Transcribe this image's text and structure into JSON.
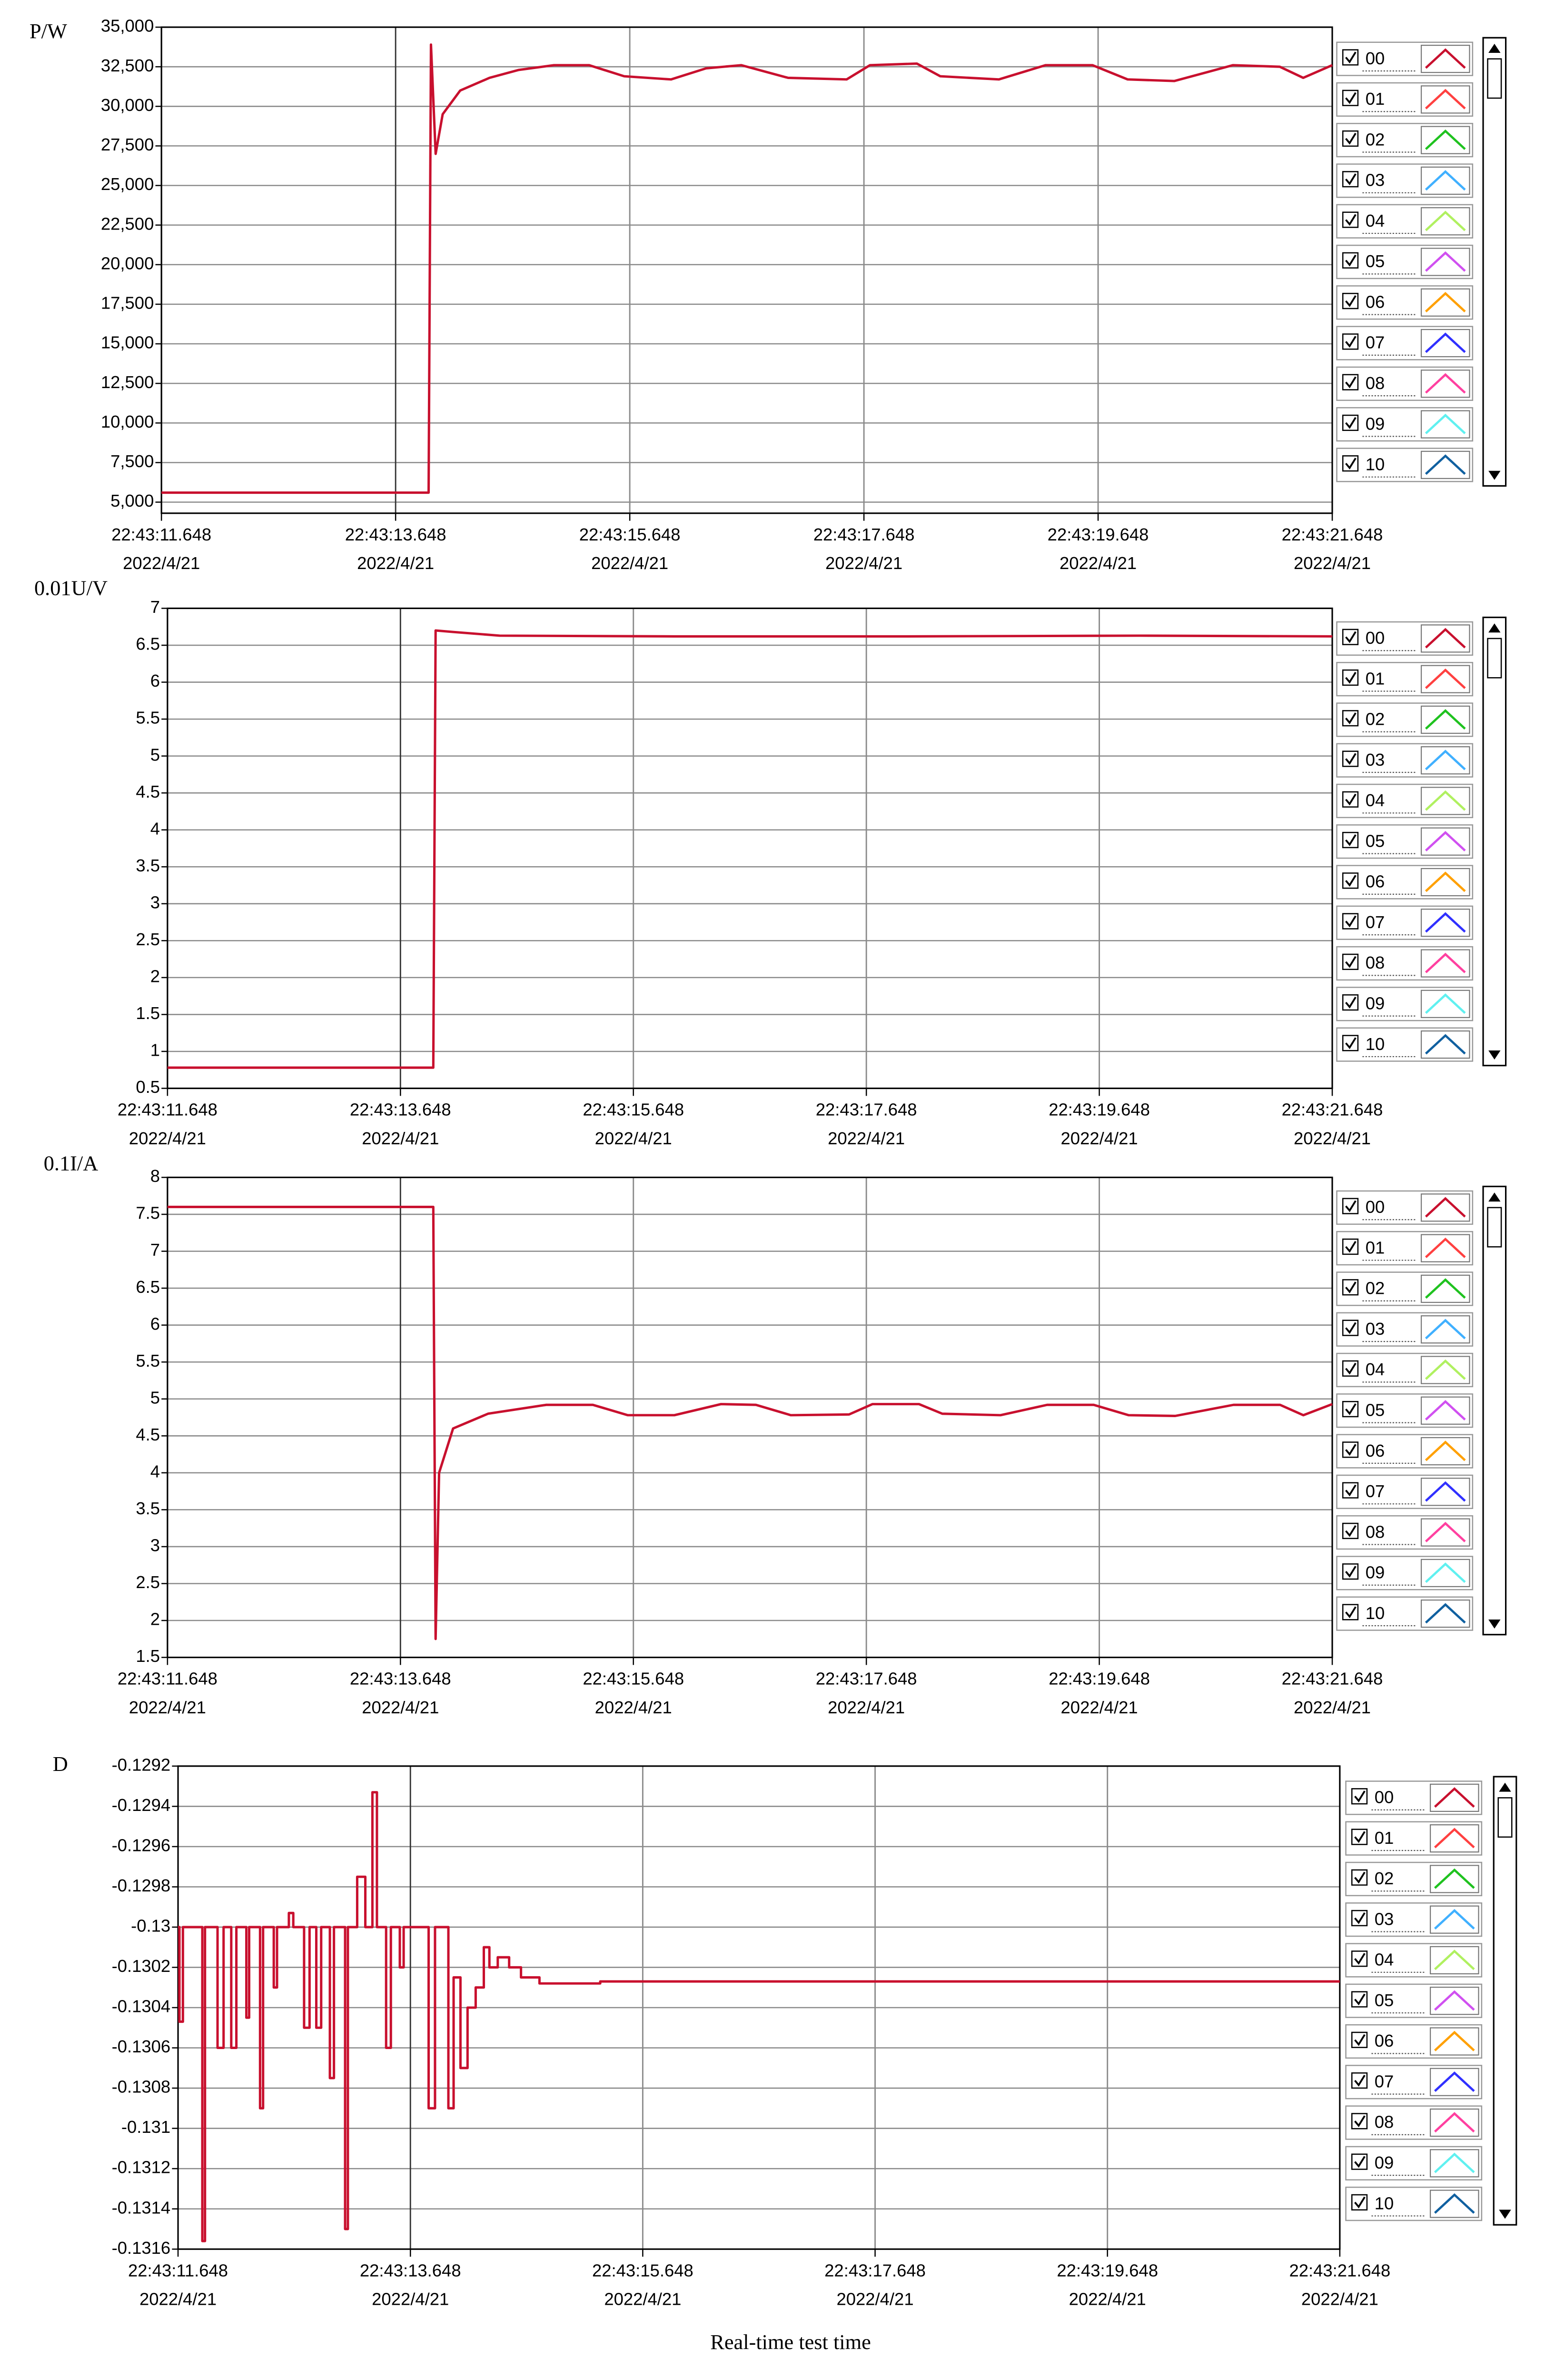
{
  "chart_data": [
    {
      "type": "line",
      "ylabel": "P/W",
      "x_date": "2022/4/21",
      "xlim": [
        "22:43:11.648",
        "22:43:21.648"
      ],
      "xticks": [
        "22:43:11.648",
        "22:43:13.648",
        "22:43:15.648",
        "22:43:17.648",
        "22:43:19.648",
        "22:43:21.648"
      ],
      "ylim": [
        4300,
        35000
      ],
      "yticks": [
        {
          "value": 5000,
          "label": "5,000"
        },
        {
          "value": 7500,
          "label": "7,500"
        },
        {
          "value": 10000,
          "label": "10,000"
        },
        {
          "value": 12500,
          "label": "12,500"
        },
        {
          "value": 15000,
          "label": "15,000"
        },
        {
          "value": 17500,
          "label": "17,500"
        },
        {
          "value": 20000,
          "label": "20,000"
        },
        {
          "value": 22500,
          "label": "22,500"
        },
        {
          "value": 25000,
          "label": "25,000"
        },
        {
          "value": 27500,
          "label": "27,500"
        },
        {
          "value": 30000,
          "label": "30,000"
        },
        {
          "value": 32500,
          "label": "32,500"
        },
        {
          "value": 35000,
          "label": "35,000"
        }
      ],
      "grid": true,
      "line_style": "linear",
      "x": [
        "22:43:11.648",
        "22:43:13.930",
        "22:43:13.950",
        "22:43:13.990",
        "22:43:14.050",
        "22:43:14.200",
        "22:43:14.450",
        "22:43:14.700",
        "22:43:15.000",
        "22:43:15.300",
        "22:43:15.600",
        "22:43:16.000",
        "22:43:16.300",
        "22:43:16.600",
        "22:43:17.000",
        "22:43:17.500",
        "22:43:17.700",
        "22:43:18.100",
        "22:43:18.300",
        "22:43:18.800",
        "22:43:19.200",
        "22:43:19.600",
        "22:43:19.900",
        "22:43:20.300",
        "22:43:20.800",
        "22:43:21.200",
        "22:43:21.400",
        "22:43:21.648"
      ],
      "series": [
        {
          "name": "00",
          "color": "#c8102e",
          "values": [
            5600,
            5600,
            33900,
            27000,
            29500,
            31000,
            31800,
            32300,
            32600,
            32600,
            31900,
            31700,
            32400,
            32600,
            31800,
            31700,
            32600,
            32700,
            31900,
            31700,
            32600,
            32600,
            31700,
            31600,
            32600,
            32500,
            31800,
            32600
          ]
        }
      ],
      "legend_entries": [
        {
          "name": "01",
          "color": "#ff4040"
        },
        {
          "name": "02",
          "color": "#1fc21f"
        },
        {
          "name": "03",
          "color": "#40b0ff"
        },
        {
          "name": "04",
          "color": "#b0f060"
        },
        {
          "name": "05",
          "color": "#d050f0"
        },
        {
          "name": "06",
          "color": "#ffa000"
        },
        {
          "name": "07",
          "color": "#3030ff"
        },
        {
          "name": "08",
          "color": "#ff40a0"
        },
        {
          "name": "09",
          "color": "#60f0f0"
        },
        {
          "name": "10",
          "color": "#1060a0"
        }
      ]
    },
    {
      "type": "line",
      "ylabel": "0.01U/V",
      "x_date": "2022/4/21",
      "xlim": [
        "22:43:11.648",
        "22:43:21.648"
      ],
      "xticks": [
        "22:43:11.648",
        "22:43:13.648",
        "22:43:15.648",
        "22:43:17.648",
        "22:43:19.648",
        "22:43:21.648"
      ],
      "ylim": [
        0.5,
        7
      ],
      "yticks": [
        0.5,
        1,
        1.5,
        2,
        2.5,
        3,
        3.5,
        4,
        4.5,
        5,
        5.5,
        6,
        6.5,
        7
      ],
      "grid": true,
      "line_style": "linear",
      "x": [
        "22:43:11.648",
        "22:43:13.930",
        "22:43:13.950",
        "22:43:14.100",
        "22:43:14.500",
        "22:43:16.000",
        "22:43:18.000",
        "22:43:20.000",
        "22:43:21.648"
      ],
      "series": [
        {
          "name": "00",
          "color": "#c8102e",
          "values": [
            0.78,
            0.78,
            6.7,
            6.68,
            6.63,
            6.62,
            6.62,
            6.63,
            6.62
          ]
        }
      ],
      "legend_entries": [
        {
          "name": "01",
          "color": "#ff4040"
        },
        {
          "name": "02",
          "color": "#1fc21f"
        },
        {
          "name": "03",
          "color": "#40b0ff"
        },
        {
          "name": "04",
          "color": "#b0f060"
        },
        {
          "name": "05",
          "color": "#d050f0"
        },
        {
          "name": "06",
          "color": "#ffa000"
        },
        {
          "name": "07",
          "color": "#3030ff"
        },
        {
          "name": "08",
          "color": "#ff40a0"
        },
        {
          "name": "09",
          "color": "#60f0f0"
        },
        {
          "name": "10",
          "color": "#1060a0"
        }
      ]
    },
    {
      "type": "line",
      "ylabel": "0.1I/A",
      "x_date": "2022/4/21",
      "xlim": [
        "22:43:11.648",
        "22:43:21.648"
      ],
      "xticks": [
        "22:43:11.648",
        "22:43:13.648",
        "22:43:15.648",
        "22:43:17.648",
        "22:43:19.648",
        "22:43:21.648"
      ],
      "ylim": [
        1.5,
        8
      ],
      "yticks": [
        1.5,
        2,
        2.5,
        3,
        3.5,
        4,
        4.5,
        5,
        5.5,
        6,
        6.5,
        7,
        7.5,
        8
      ],
      "grid": true,
      "line_style": "linear",
      "x": [
        "22:43:11.648",
        "22:43:13.930",
        "22:43:13.950",
        "22:43:13.980",
        "22:43:14.100",
        "22:43:14.400",
        "22:43:14.900",
        "22:43:15.300",
        "22:43:15.600",
        "22:43:16.000",
        "22:43:16.400",
        "22:43:16.700",
        "22:43:17.000",
        "22:43:17.500",
        "22:43:17.700",
        "22:43:18.100",
        "22:43:18.300",
        "22:43:18.800",
        "22:43:19.200",
        "22:43:19.600",
        "22:43:19.900",
        "22:43:20.300",
        "22:43:20.800",
        "22:43:21.200",
        "22:43:21.400",
        "22:43:21.648"
      ],
      "series": [
        {
          "name": "00",
          "color": "#c8102e",
          "values": [
            7.6,
            7.6,
            1.75,
            4.0,
            4.6,
            4.8,
            4.92,
            4.92,
            4.78,
            4.78,
            4.93,
            4.92,
            4.78,
            4.79,
            4.93,
            4.93,
            4.8,
            4.78,
            4.92,
            4.92,
            4.78,
            4.77,
            4.92,
            4.92,
            4.78,
            4.93
          ]
        }
      ],
      "legend_entries": [
        {
          "name": "01",
          "color": "#ff4040"
        },
        {
          "name": "02",
          "color": "#1fc21f"
        },
        {
          "name": "03",
          "color": "#40b0ff"
        },
        {
          "name": "04",
          "color": "#b0f060"
        },
        {
          "name": "05",
          "color": "#d050f0"
        },
        {
          "name": "06",
          "color": "#ffa000"
        },
        {
          "name": "07",
          "color": "#3030ff"
        },
        {
          "name": "08",
          "color": "#ff40a0"
        },
        {
          "name": "09",
          "color": "#60f0f0"
        },
        {
          "name": "10",
          "color": "#1060a0"
        }
      ]
    },
    {
      "type": "line",
      "ylabel": "D",
      "x_date": "2022/4/21",
      "xlabel": "Real-time test time",
      "xlim": [
        "22:43:11.648",
        "22:43:21.648"
      ],
      "xticks": [
        "22:43:11.648",
        "22:43:13.648",
        "22:43:15.648",
        "22:43:17.648",
        "22:43:19.648",
        "22:43:21.648"
      ],
      "ylim": [
        -0.1316,
        -0.1292
      ],
      "yticks": [
        -0.1292,
        -0.1294,
        -0.1296,
        -0.1298,
        -0.13,
        -0.1302,
        -0.1304,
        -0.1306,
        -0.1308,
        -0.131,
        -0.1312,
        -0.1314,
        -0.1316
      ],
      "grid": true,
      "line_style": "step",
      "x": [
        "22:43:11.648",
        "22:43:11.660",
        "22:43:11.690",
        "22:43:11.857",
        "22:43:11.880",
        "22:43:11.988",
        "22:43:12.040",
        "22:43:12.106",
        "22:43:12.150",
        "22:43:12.236",
        "22:43:12.260",
        "22:43:12.354",
        "22:43:12.380",
        "22:43:12.472",
        "22:43:12.500",
        "22:43:12.602",
        "22:43:12.640",
        "22:43:12.733",
        "22:43:12.780",
        "22:43:12.838",
        "22:43:12.880",
        "22:43:12.955",
        "22:43:12.990",
        "22:43:13.086",
        "22:43:13.110",
        "22:43:13.190",
        "22:43:13.260",
        "22:43:13.321",
        "22:43:13.360",
        "22:43:13.439",
        "22:43:13.480",
        "22:43:13.557",
        "22:43:13.590",
        "22:43:13.805",
        "22:43:13.860",
        "22:43:13.975",
        "22:43:14.020",
        "22:43:14.079",
        "22:43:14.140",
        "22:43:14.210",
        "22:43:14.280",
        "22:43:14.328",
        "22:43:14.400",
        "22:43:14.498",
        "22:43:14.600",
        "22:43:14.759",
        "22:43:15.282",
        "22:43:21.648"
      ],
      "series": [
        {
          "name": "00",
          "color": "#c8102e",
          "values": [
            -0.13,
            -0.13047,
            -0.13,
            -0.13156,
            -0.13,
            -0.1306,
            -0.13,
            -0.1306,
            -0.13,
            -0.13045,
            -0.13,
            -0.1309,
            -0.13,
            -0.1303,
            -0.13,
            -0.12993,
            -0.13,
            -0.1305,
            -0.13,
            -0.1305,
            -0.13,
            -0.13075,
            -0.13,
            -0.1315,
            -0.13,
            -0.12975,
            -0.13,
            -0.12933,
            -0.13,
            -0.1306,
            -0.13,
            -0.1302,
            -0.13,
            -0.1309,
            -0.13,
            -0.1309,
            -0.13025,
            -0.1307,
            -0.1304,
            -0.1303,
            -0.1301,
            -0.1302,
            -0.13015,
            -0.1302,
            -0.13025,
            -0.13028,
            -0.13027,
            -0.13027
          ]
        }
      ],
      "legend_entries": [
        {
          "name": "01",
          "color": "#ff4040"
        },
        {
          "name": "02",
          "color": "#1fc21f"
        },
        {
          "name": "03",
          "color": "#40b0ff"
        },
        {
          "name": "04",
          "color": "#b0f060"
        },
        {
          "name": "05",
          "color": "#d050f0"
        },
        {
          "name": "06",
          "color": "#ffa000"
        },
        {
          "name": "07",
          "color": "#3030ff"
        },
        {
          "name": "08",
          "color": "#ff40a0"
        },
        {
          "name": "09",
          "color": "#60f0f0"
        },
        {
          "name": "10",
          "color": "#1060a0"
        }
      ]
    }
  ]
}
